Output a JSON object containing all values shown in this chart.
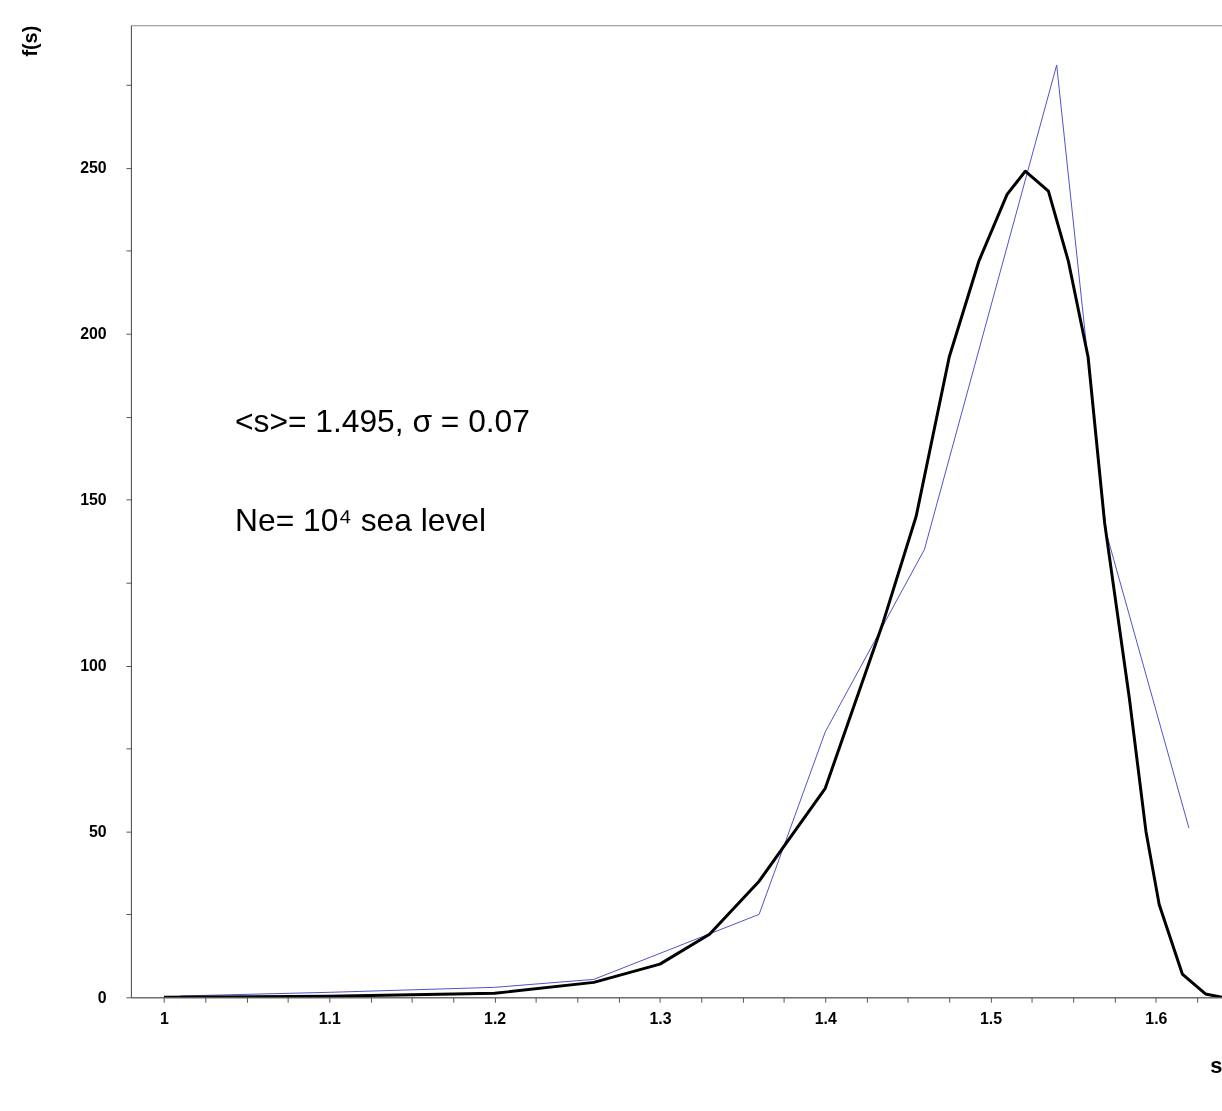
{
  "chart_data": {
    "type": "line",
    "xlabel": "s",
    "ylabel": "f(s)",
    "annotations": [
      "<s>= 1.495, σ = 0.07",
      "Ne= 10⁴ sea level"
    ],
    "xlim": [
      0.98,
      1.64
    ],
    "ylim": [
      0,
      293
    ],
    "xticks": [
      1,
      {
        "value": 1.025,
        "label": null
      },
      {
        "value": 1.05,
        "label": null
      },
      {
        "value": 1.075,
        "label": null
      },
      1.1,
      {
        "value": 1.125,
        "label": null
      },
      {
        "value": 1.15,
        "label": null
      },
      {
        "value": 1.175,
        "label": null
      },
      1.2,
      {
        "value": 1.225,
        "label": null
      },
      {
        "value": 1.25,
        "label": null
      },
      {
        "value": 1.275,
        "label": null
      },
      1.3,
      {
        "value": 1.325,
        "label": null
      },
      {
        "value": 1.35,
        "label": null
      },
      {
        "value": 1.375,
        "label": null
      },
      1.4,
      {
        "value": 1.425,
        "label": null
      },
      {
        "value": 1.45,
        "label": null
      },
      {
        "value": 1.475,
        "label": null
      },
      1.5,
      {
        "value": 1.525,
        "label": null
      },
      {
        "value": 1.55,
        "label": null
      },
      {
        "value": 1.575,
        "label": null
      },
      1.6,
      {
        "value": 1.625,
        "label": null
      }
    ],
    "yticks": [
      0,
      {
        "value": 25,
        "label": null
      },
      50,
      {
        "value": 75,
        "label": null
      },
      100,
      {
        "value": 125,
        "label": null
      },
      150,
      {
        "value": 175,
        "label": null
      },
      200,
      {
        "value": 225,
        "label": null
      },
      250,
      {
        "value": 275,
        "label": null
      }
    ],
    "grid": false,
    "marker": "none",
    "series": [
      {
        "color": "#5050c8",
        "x": [
          1.01,
          1.1,
          1.2,
          1.26,
          1.36,
          1.4,
          1.46,
          1.54,
          1.57,
          1.62
        ],
        "values": [
          0.4,
          1.5,
          3,
          5.4,
          25,
          80,
          135,
          281,
          140,
          51
        ]
      },
      {
        "color": "#000000",
        "x": [
          1.0,
          1.1,
          1.2,
          1.26,
          1.3,
          1.33,
          1.36,
          1.4,
          1.435,
          1.455,
          1.475,
          1.493,
          1.51,
          1.521,
          1.535,
          1.547,
          1.559,
          1.569,
          1.584,
          1.594,
          1.602,
          1.616,
          1.63,
          1.64
        ],
        "values": [
          0,
          0.3,
          1.2,
          4.5,
          10,
          19,
          35,
          63,
          113,
          145,
          193,
          222,
          242,
          249,
          243,
          222,
          193,
          143,
          90,
          50,
          28,
          7,
          1,
          0
        ]
      }
    ]
  }
}
